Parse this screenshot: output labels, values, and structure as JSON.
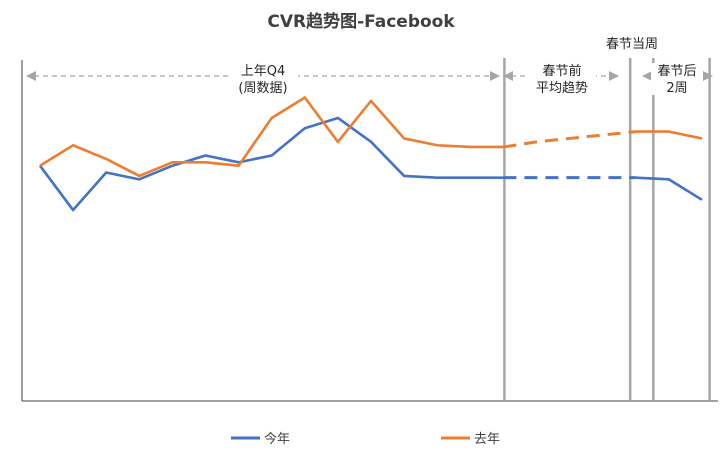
{
  "chart_data": {
    "type": "line",
    "title": "CVR趋势图-Facebook",
    "xlabel": "",
    "ylabel": "",
    "ylim": [
      0,
      1
    ],
    "grid": false,
    "legend_position": "bottom",
    "x": [
      1,
      2,
      3,
      4,
      5,
      6,
      7,
      8,
      9,
      10,
      11,
      12,
      13,
      14,
      15,
      16,
      17,
      18,
      19,
      20,
      21
    ],
    "series": [
      {
        "name": "今年",
        "color": "#4472c4",
        "values": [
          0.69,
          0.56,
          0.67,
          0.65,
          0.69,
          0.72,
          0.7,
          0.72,
          0.8,
          0.83,
          0.76,
          0.66,
          0.655,
          0.655,
          0.655,
          null,
          null,
          null,
          0.655,
          0.65,
          0.59
        ],
        "dashed_values": [
          null,
          null,
          null,
          null,
          null,
          null,
          null,
          null,
          null,
          null,
          null,
          null,
          null,
          null,
          0.655,
          0.655,
          0.655,
          0.655,
          0.655,
          null,
          null
        ]
      },
      {
        "name": "去年",
        "color": "#ed7d31",
        "values": [
          0.69,
          0.75,
          0.71,
          0.66,
          0.7,
          0.7,
          0.69,
          0.83,
          0.89,
          0.76,
          0.88,
          0.77,
          0.75,
          0.745,
          0.745,
          null,
          null,
          null,
          0.79,
          0.79,
          0.77
        ],
        "dashed_values": [
          null,
          null,
          null,
          null,
          null,
          null,
          null,
          null,
          null,
          null,
          null,
          null,
          null,
          null,
          0.745,
          0.76,
          0.77,
          0.78,
          0.79,
          null,
          null
        ]
      }
    ],
    "dividers_after_x": [
      15,
      18.8,
      19.5,
      21.2
    ],
    "annotations": {
      "q4_label_line1": "上年Q4",
      "q4_label_line2": "(周数据)",
      "pre_label_line1": "春节前",
      "pre_label_line2": "平均趋势",
      "week_label": "春节当周",
      "post_label_line1": "春节后",
      "post_label_line2": "2周"
    }
  }
}
